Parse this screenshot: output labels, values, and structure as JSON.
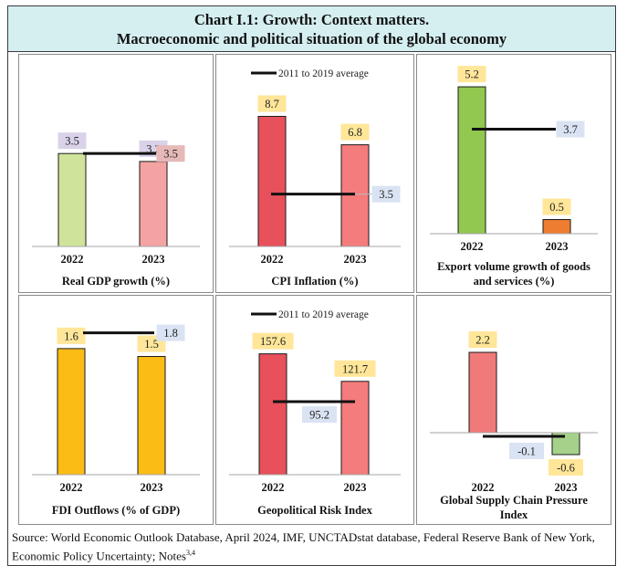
{
  "header": {
    "title_line1": "Chart I.1: Growth: Context matters.",
    "title_line2": "Macroeconomic and political situation of the global economy"
  },
  "source": {
    "text": "Source: World Economic Outlook Database, April 2024, IMF, UNCTADstat database, Federal Reserve Bank of New York, Economic Policy Uncertainty; Notes",
    "notes_sup": "3,4"
  },
  "colors": {
    "label_purple": "#d9d2e9",
    "label_pink": "#e6b8b7",
    "label_yellow": "#ffe699",
    "label_blue": "#dae3f3",
    "axis": "#a6a6a6"
  },
  "chart_data": [
    {
      "type": "bar",
      "title": "Real GDP growth (%)",
      "categories": [
        "2022",
        "2023"
      ],
      "values": [
        3.5,
        3.2
      ],
      "value_labels": [
        "3.5",
        "3.2"
      ],
      "bar_colors": [
        "#cfe49a",
        "#f4a3a3"
      ],
      "label_colors": [
        "#d9d2e9",
        "#d9d2e9"
      ],
      "average": 3.5,
      "average_label": "3.5",
      "average_label_color": "#e6b8b7",
      "legend": "",
      "ylim": [
        0,
        5.5
      ]
    },
    {
      "type": "bar",
      "title": "CPI Inflation (%)",
      "categories": [
        "2022",
        "2023"
      ],
      "values": [
        8.7,
        6.8
      ],
      "value_labels": [
        "8.7",
        "6.8"
      ],
      "bar_colors": [
        "#e8505b",
        "#f47c7c"
      ],
      "label_colors": [
        "#ffe699",
        "#ffe699"
      ],
      "average": 3.5,
      "average_label": "3.5",
      "average_label_color": "#dae3f3",
      "legend": "2011 to 2019 average",
      "ylim": [
        0,
        10.5
      ]
    },
    {
      "type": "bar",
      "title": "Export volume growth of goods and services (%)",
      "title_lines": [
        "Export volume growth of goods",
        "and services (%)"
      ],
      "categories": [
        "2022",
        "2023"
      ],
      "values": [
        5.2,
        0.5
      ],
      "value_labels": [
        "5.2",
        "0.5"
      ],
      "bar_colors": [
        "#92c84f",
        "#ef7d31"
      ],
      "label_colors": [
        "#ffe699",
        "#ffe699"
      ],
      "average": 3.7,
      "average_label": "3.7",
      "average_label_color": "#dae3f3",
      "legend": "",
      "ylim": [
        0,
        5.3
      ]
    },
    {
      "type": "bar",
      "title": "FDI Outflows (% of GDP)",
      "categories": [
        "2022",
        "2023"
      ],
      "values": [
        1.6,
        1.5
      ],
      "value_labels": [
        "1.6",
        "1.5"
      ],
      "bar_colors": [
        "#fbbc16",
        "#fbbc16"
      ],
      "label_colors": [
        "#ffe699",
        "#ffe699"
      ],
      "average": 1.8,
      "average_label": "1.8",
      "average_label_color": "#dae3f3",
      "legend": "",
      "ylim": [
        0,
        1.9
      ]
    },
    {
      "type": "bar",
      "title": "Geopolitical Risk Index",
      "categories": [
        "2022",
        "2023"
      ],
      "values": [
        157.6,
        121.7
      ],
      "value_labels": [
        "157.6",
        "121.7"
      ],
      "bar_colors": [
        "#e8505b",
        "#f47c7c"
      ],
      "label_colors": [
        "#ffe699",
        "#ffe699"
      ],
      "average": 95.2,
      "average_label": "95.2",
      "average_label_color": "#dae3f3",
      "legend": "2011 to 2019 average",
      "ylim": [
        0,
        200
      ]
    },
    {
      "type": "bar",
      "title": "Global Supply Chain Pressure Index",
      "title_lines": [
        "Global Supply Chain Pressure",
        "Index"
      ],
      "categories": [
        "2022",
        "2023"
      ],
      "values": [
        2.2,
        -0.6
      ],
      "value_labels": [
        "2.2",
        "-0.6"
      ],
      "bar_colors": [
        "#f07a7a",
        "#a6d18a"
      ],
      "label_colors": [
        "#ffe699",
        "#ffe699"
      ],
      "average": -0.1,
      "average_label": "-0.1",
      "average_label_color": "#dae3f3",
      "legend": "",
      "ylim": [
        -0.7,
        2.5
      ]
    }
  ]
}
